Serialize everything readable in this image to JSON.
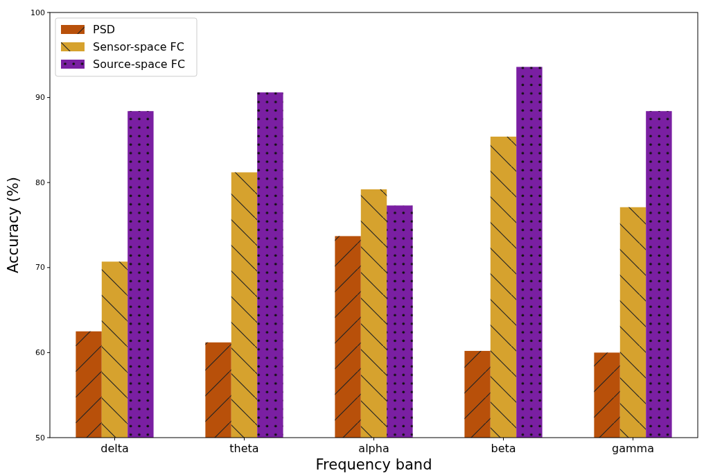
{
  "chart_data": {
    "type": "bar",
    "xlabel": "Frequency band",
    "ylabel": "Accuracy (%)",
    "categories": [
      "delta",
      "theta",
      "alpha",
      "beta",
      "gamma"
    ],
    "series": [
      {
        "name": "PSD",
        "color": "#b8500a",
        "values": [
          62.5,
          61.2,
          73.7,
          60.2,
          60.0
        ]
      },
      {
        "name": "Sensor-space FC",
        "color": "#d6a22e",
        "values": [
          70.7,
          81.2,
          79.2,
          85.4,
          77.1
        ]
      },
      {
        "name": "Source-space FC",
        "color": "#7a1fa2",
        "values": [
          88.4,
          90.6,
          77.3,
          93.6,
          88.4
        ]
      }
    ],
    "ylim": [
      50,
      100
    ],
    "yticks": [
      50,
      60,
      70,
      80,
      90,
      100
    ],
    "grid": false,
    "legend": "top left"
  }
}
